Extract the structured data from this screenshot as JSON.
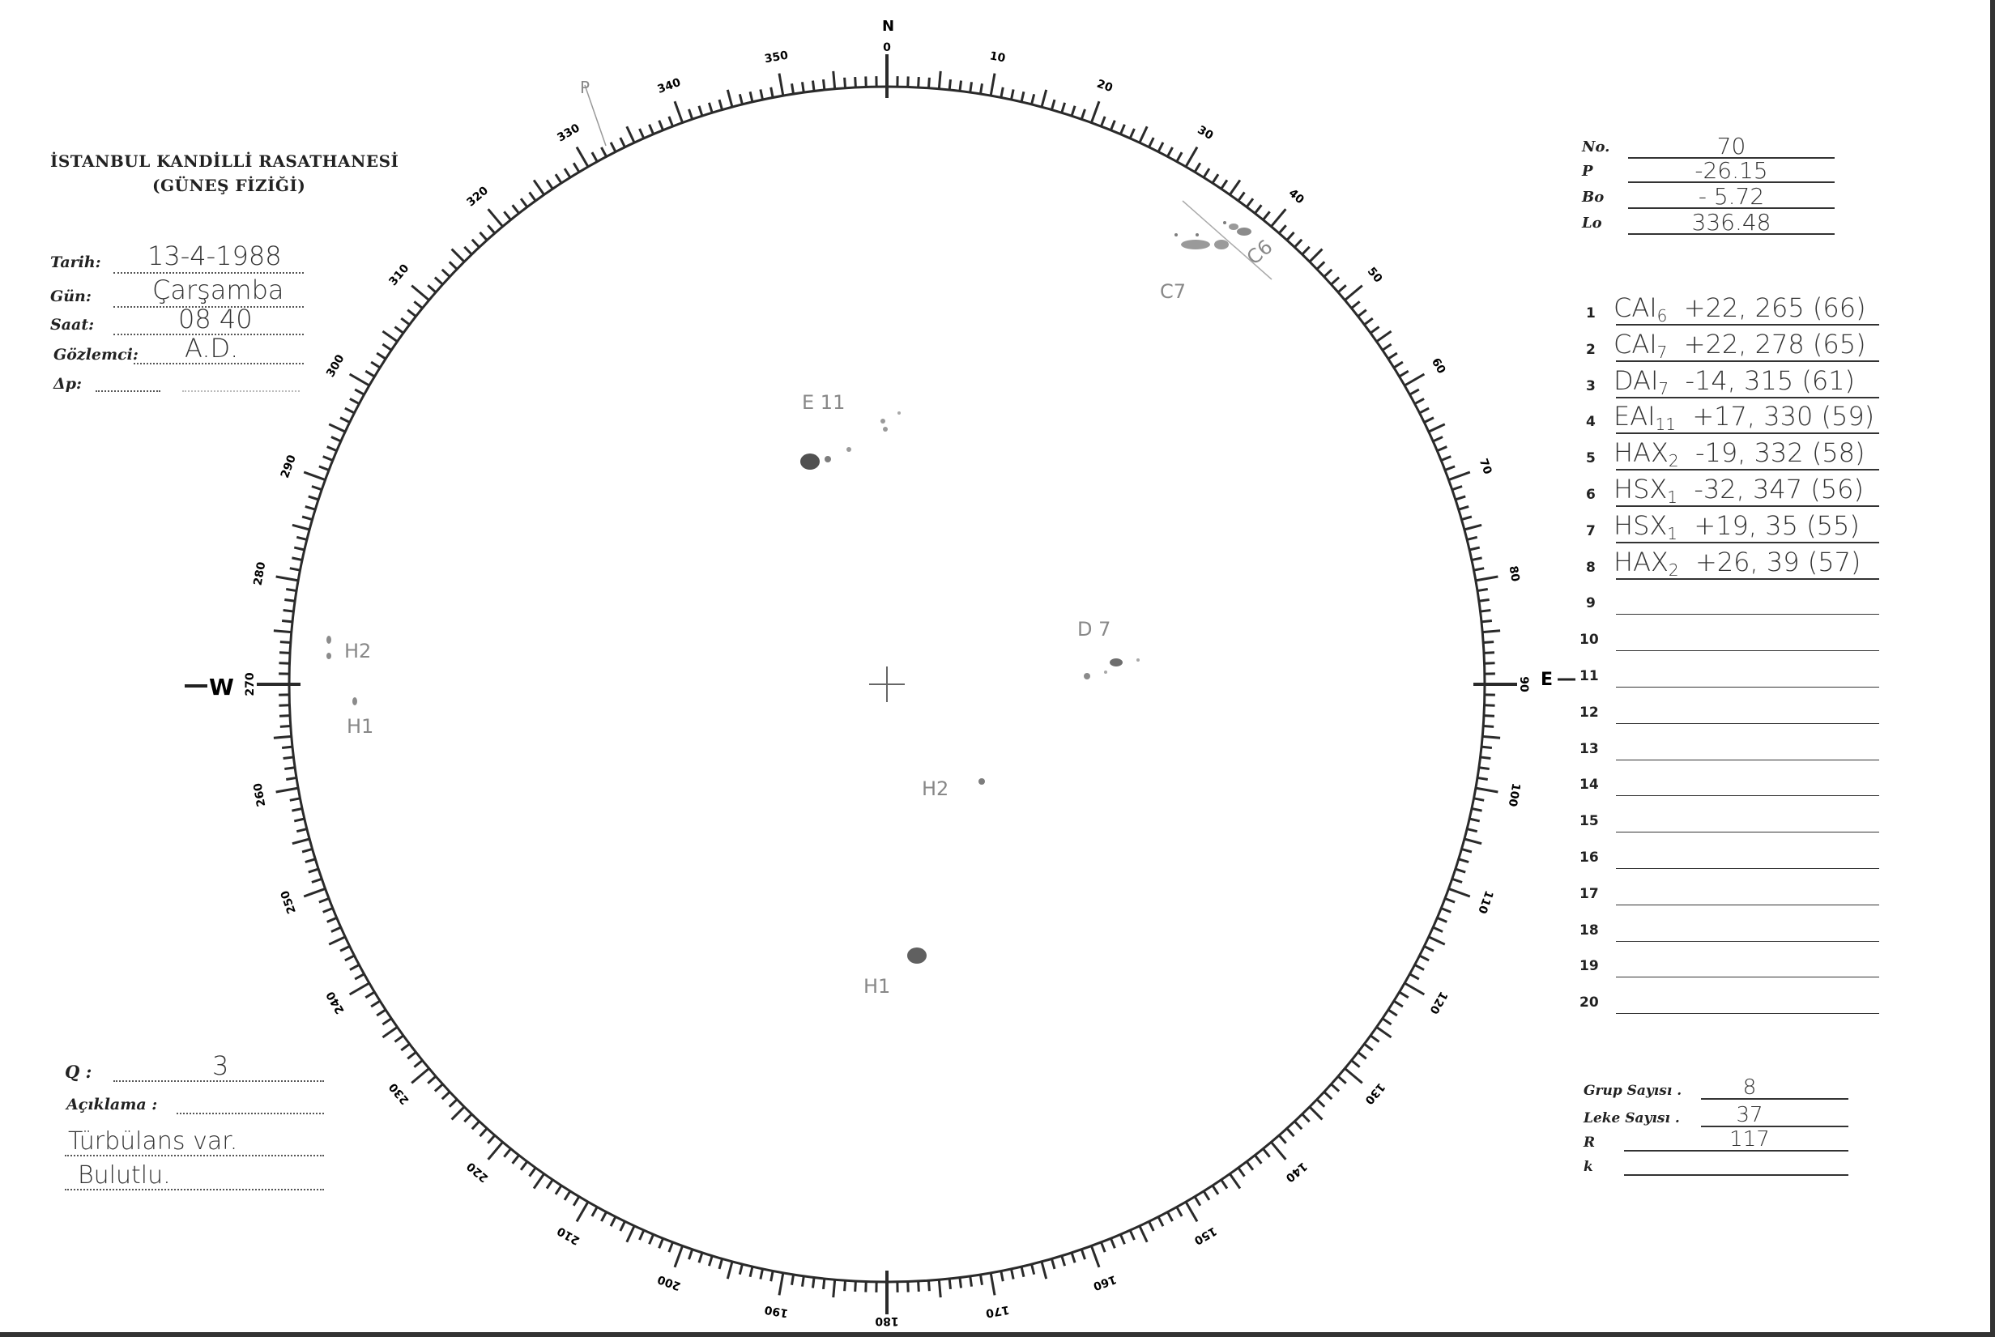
{
  "header": {
    "title": "İSTANBUL KANDİLLİ RASATHANESİ",
    "subtitle": "(GÜNEŞ FİZİĞİ)"
  },
  "observation": {
    "fields": [
      {
        "label": "Tarih:",
        "value": "13-4-1988"
      },
      {
        "label": "Gün:",
        "value": "Çarşamba"
      },
      {
        "label": "Saat:",
        "value": "08 40"
      },
      {
        "label": "Gözlemci:",
        "value": "A.D."
      },
      {
        "label": "Δp:",
        "value": ""
      }
    ]
  },
  "parameters": [
    {
      "label": "No.",
      "value": "70"
    },
    {
      "label": "P",
      "value": "-26.15"
    },
    {
      "label": "Bo",
      "value": "- 5.72"
    },
    {
      "label": "Lo",
      "value": "336.48"
    }
  ],
  "groups_table": [
    {
      "n": "1",
      "cls": "CAI",
      "sub": "6",
      "pos": "+22, 265",
      "cmd": "(66)"
    },
    {
      "n": "2",
      "cls": "CAI",
      "sub": "7",
      "pos": "+22, 278",
      "cmd": "(65)"
    },
    {
      "n": "3",
      "cls": "DAI",
      "sub": "7",
      "pos": "-14, 315",
      "cmd": "(61)"
    },
    {
      "n": "4",
      "cls": "EAI",
      "sub": "11",
      "pos": "+17, 330",
      "cmd": "(59)"
    },
    {
      "n": "5",
      "cls": "HAX",
      "sub": "2",
      "pos": "-19, 332",
      "cmd": "(58)"
    },
    {
      "n": "6",
      "cls": "HSX",
      "sub": "1",
      "pos": "-32, 347",
      "cmd": "(56)"
    },
    {
      "n": "7",
      "cls": "HSX",
      "sub": "1",
      "pos": "+19, 35",
      "cmd": "(55)"
    },
    {
      "n": "8",
      "cls": "HAX",
      "sub": "2",
      "pos": "+26, 39",
      "cmd": "(57)"
    },
    {
      "n": "9"
    },
    {
      "n": "10"
    },
    {
      "n": "11"
    },
    {
      "n": "12"
    },
    {
      "n": "13"
    },
    {
      "n": "14"
    },
    {
      "n": "15"
    },
    {
      "n": "16"
    },
    {
      "n": "17"
    },
    {
      "n": "18"
    },
    {
      "n": "19"
    },
    {
      "n": "20"
    }
  ],
  "summary": [
    {
      "label": "Grup Sayısı .",
      "value": "8"
    },
    {
      "label": "Leke Sayısı .",
      "value": "37"
    },
    {
      "label": "R",
      "value": "117"
    },
    {
      "label": "k",
      "value": ""
    }
  ],
  "notes": {
    "q_label": "Q :",
    "q_value": "3",
    "remark_label": "Açıklama :",
    "remark_lines": [
      "Türbülans var.",
      "Bulutlu."
    ]
  },
  "disk": {
    "north": "N",
    "east": "E",
    "west": "W",
    "p_marker": "P",
    "degree_labels": [
      "0",
      "10",
      "20",
      "30",
      "40",
      "50",
      "60",
      "70",
      "80",
      "90",
      "100",
      "110",
      "120",
      "130",
      "140",
      "150",
      "160",
      "170",
      "180",
      "190",
      "200",
      "210",
      "220",
      "230",
      "240",
      "250",
      "260",
      "270",
      "280",
      "290",
      "300",
      "310",
      "320",
      "330",
      "340",
      "350"
    ],
    "group_labels": [
      "E 11",
      "D 7",
      "H2",
      "H1",
      "C7",
      "C6",
      "H2",
      "H1"
    ]
  },
  "colors": {
    "ink": "#222222",
    "pencil": "#777777",
    "paper": "#ffffff"
  }
}
